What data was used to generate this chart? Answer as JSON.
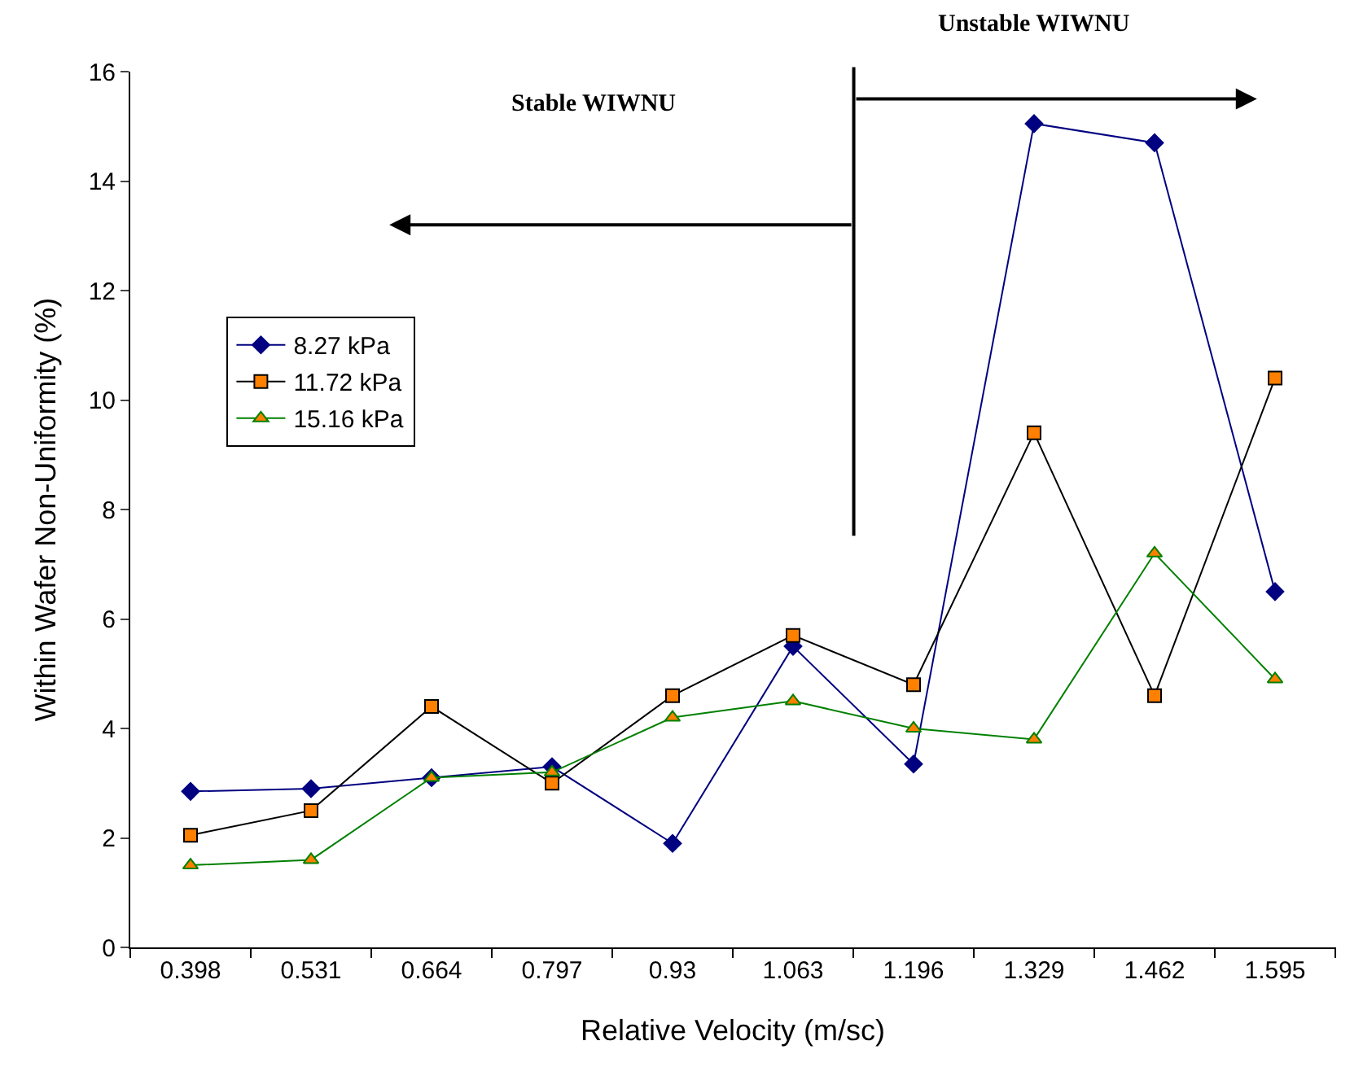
{
  "chart_data": {
    "type": "line",
    "xlabel": "Relative Velocity (m/sc)",
    "ylabel": "Within Wafer Non-Uniformity (%)",
    "x": [
      0.398,
      0.531,
      0.664,
      0.797,
      0.93,
      1.063,
      1.196,
      1.329,
      1.462,
      1.595
    ],
    "xlim": [
      0.3315,
      1.6615
    ],
    "xticks": [
      0.398,
      0.531,
      0.664,
      0.797,
      0.93,
      1.063,
      1.196,
      1.329,
      1.462,
      1.595
    ],
    "ylim": [
      0,
      16
    ],
    "yticks": [
      0,
      2,
      4,
      6,
      8,
      10,
      12,
      14,
      16
    ],
    "grid": false,
    "legend": "left",
    "annotations": [
      "Stable WIWNU",
      "Unstable WIWNU"
    ],
    "ref_lines": [
      {
        "axis": "x",
        "value": 1.13,
        "color": "#000000"
      }
    ],
    "series": [
      {
        "name": "8.27 kPa",
        "color": "#000080",
        "marker": "diamond",
        "values": [
          2.85,
          2.9,
          3.1,
          3.3,
          1.9,
          5.5,
          3.35,
          15.05,
          14.7,
          6.5
        ]
      },
      {
        "name": "11.72 kPa",
        "color": "#000000",
        "marker": "square",
        "colors": [
          "#ff8000",
          "#ff8000",
          "#ff8000",
          "#ff8000",
          "#ff8000",
          "#ff8000",
          "#ff8000",
          "#ff8000",
          "#ff8000",
          "#ff8000"
        ],
        "values": [
          2.05,
          2.5,
          4.4,
          3.0,
          4.6,
          5.7,
          4.8,
          9.4,
          4.6,
          10.4
        ]
      },
      {
        "name": "15.16 kPa",
        "color": "#008000",
        "marker": "triangle",
        "colors": [
          "#ff8000",
          "#ff8000",
          "#ff8000",
          "#ff8000",
          "#ff8000",
          "#ff8000",
          "#ff8000",
          "#ff8000",
          "#ff8000",
          "#ff8000"
        ],
        "values": [
          1.5,
          1.6,
          3.1,
          3.2,
          4.2,
          4.5,
          4.0,
          3.8,
          7.2,
          4.9
        ]
      }
    ]
  }
}
